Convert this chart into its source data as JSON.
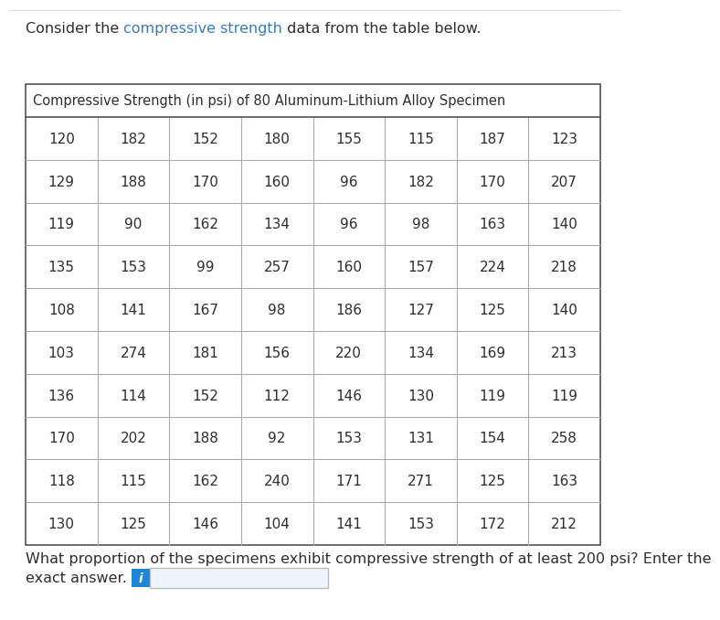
{
  "intro_text_black1": "Consider the ",
  "intro_text_blue": "compressive strength",
  "intro_text_black2": " data from the table below.",
  "table_title": "Compressive Strength (in psi) of 80 Aluminum-Lithium Alloy Specimen",
  "table_data": [
    [
      120,
      182,
      152,
      180,
      155,
      115,
      187,
      123
    ],
    [
      129,
      188,
      170,
      160,
      96,
      182,
      170,
      207
    ],
    [
      119,
      90,
      162,
      134,
      96,
      98,
      163,
      140
    ],
    [
      135,
      153,
      99,
      257,
      160,
      157,
      224,
      218
    ],
    [
      108,
      141,
      167,
      98,
      186,
      127,
      125,
      140
    ],
    [
      103,
      274,
      181,
      156,
      220,
      134,
      169,
      213
    ],
    [
      136,
      114,
      152,
      112,
      146,
      130,
      119,
      119
    ],
    [
      170,
      202,
      188,
      92,
      153,
      131,
      154,
      258
    ],
    [
      118,
      115,
      162,
      240,
      171,
      271,
      125,
      163
    ],
    [
      130,
      125,
      146,
      104,
      141,
      153,
      172,
      212
    ]
  ],
  "question_line1": "What proportion of the specimens exhibit compressive strength of at least 200 psi? Enter the",
  "question_line2_text": "exact answer.",
  "highlight_color": "#3b7bbf",
  "text_color": "#2e2e2e",
  "table_line_color": "#aaaaaa",
  "bg_color": "#ffffff",
  "input_box_fill": "#f0f4ff",
  "input_box_edge": "#bbbbbb",
  "info_btn_color": "#1e86d4",
  "font_size_intro": 11.5,
  "font_size_title": 10.5,
  "font_size_data": 11.0,
  "font_size_question": 11.5
}
